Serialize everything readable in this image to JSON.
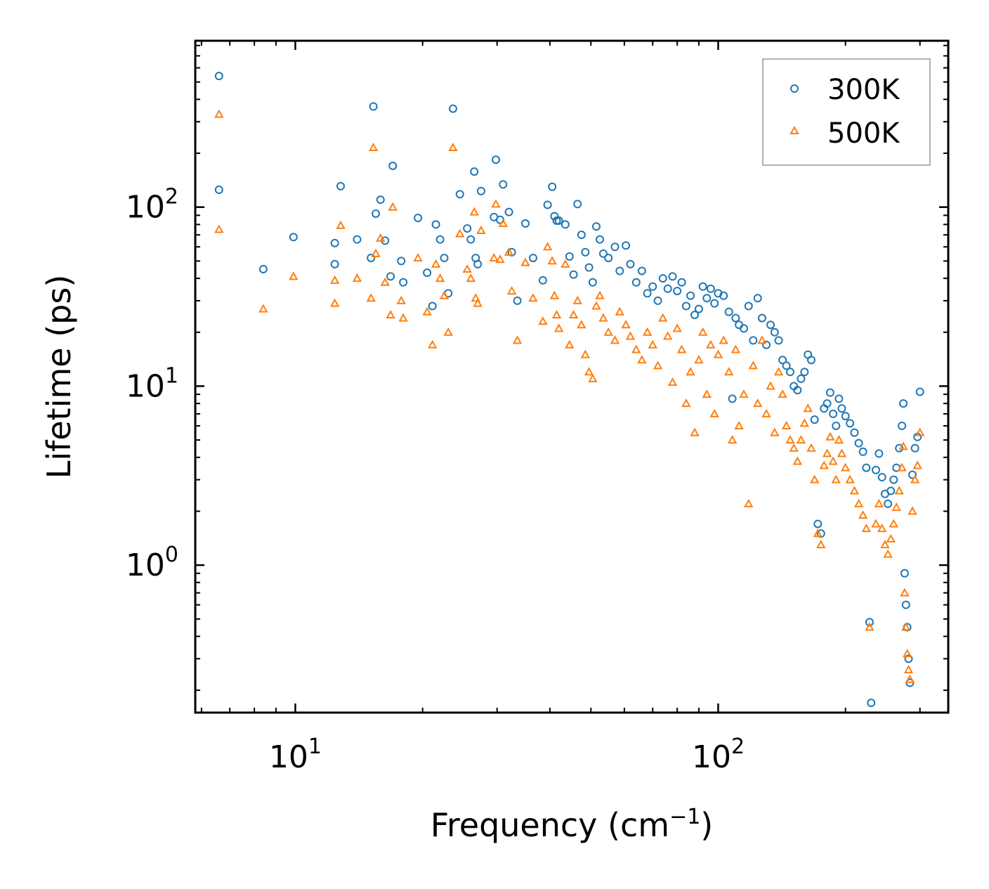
{
  "chart_data": {
    "type": "scatter",
    "title": "",
    "xlabel": "Frequency (cm",
    "xlabel_sup": "−1",
    "xlabel_close": ")",
    "ylabel": "Lifetime (ps)",
    "xscale": "log",
    "yscale": "log",
    "xlim": [
      5.8,
      350
    ],
    "ylim": [
      0.15,
      850
    ],
    "x_ticks": [
      {
        "value": 10,
        "base": "10",
        "exp": "1"
      },
      {
        "value": 100,
        "base": "10",
        "exp": "2"
      }
    ],
    "y_ticks": [
      {
        "value": 1,
        "base": "10",
        "exp": "0"
      },
      {
        "value": 10,
        "base": "10",
        "exp": "1"
      },
      {
        "value": 100,
        "base": "10",
        "exp": "2"
      }
    ],
    "legend_position": "top-right",
    "series": [
      {
        "name": "300K",
        "marker": "circle",
        "color": "#1f77b4",
        "points": [
          [
            6.6,
            540
          ],
          [
            6.6,
            125
          ],
          [
            8.4,
            45
          ],
          [
            9.9,
            68
          ],
          [
            12.4,
            63
          ],
          [
            12.4,
            48
          ],
          [
            12.8,
            131
          ],
          [
            14,
            66
          ],
          [
            15.1,
            52
          ],
          [
            15.3,
            365
          ],
          [
            15.5,
            92
          ],
          [
            15.9,
            110
          ],
          [
            16.3,
            65
          ],
          [
            16.8,
            41
          ],
          [
            17,
            170
          ],
          [
            17.8,
            50
          ],
          [
            18,
            38
          ],
          [
            19.5,
            87
          ],
          [
            20.5,
            43
          ],
          [
            21.1,
            28
          ],
          [
            21.5,
            80
          ],
          [
            22,
            66
          ],
          [
            22.5,
            52
          ],
          [
            23,
            33
          ],
          [
            23.6,
            355
          ],
          [
            24.5,
            118
          ],
          [
            25.5,
            76
          ],
          [
            26,
            66
          ],
          [
            26.5,
            158
          ],
          [
            26.7,
            52
          ],
          [
            27,
            48
          ],
          [
            27.5,
            123
          ],
          [
            29.5,
            88
          ],
          [
            29.8,
            184
          ],
          [
            30.5,
            85
          ],
          [
            31,
            134
          ],
          [
            32,
            94
          ],
          [
            32.5,
            56
          ],
          [
            33.5,
            30
          ],
          [
            35,
            81
          ],
          [
            36.5,
            52
          ],
          [
            38.5,
            39
          ],
          [
            39.5,
            103
          ],
          [
            40.5,
            130
          ],
          [
            41,
            89
          ],
          [
            41.5,
            84
          ],
          [
            42,
            84
          ],
          [
            43.5,
            80
          ],
          [
            44.5,
            53
          ],
          [
            45.5,
            42
          ],
          [
            46.5,
            104
          ],
          [
            47.5,
            70
          ],
          [
            48.5,
            56
          ],
          [
            49.5,
            46
          ],
          [
            50.5,
            38
          ],
          [
            51.5,
            78
          ],
          [
            52.5,
            66
          ],
          [
            53.5,
            55
          ],
          [
            55,
            52
          ],
          [
            57,
            60
          ],
          [
            58.5,
            44
          ],
          [
            60.5,
            61
          ],
          [
            62,
            48
          ],
          [
            64,
            38
          ],
          [
            66,
            44
          ],
          [
            68,
            33
          ],
          [
            70,
            36
          ],
          [
            72,
            30
          ],
          [
            74,
            40
          ],
          [
            76,
            35
          ],
          [
            78,
            41
          ],
          [
            80,
            34
          ],
          [
            82,
            38
          ],
          [
            84,
            28
          ],
          [
            86,
            32
          ],
          [
            88,
            25
          ],
          [
            90,
            27
          ],
          [
            92,
            36
          ],
          [
            94,
            31
          ],
          [
            96,
            35
          ],
          [
            98,
            29
          ],
          [
            100,
            33
          ],
          [
            103,
            32
          ],
          [
            106,
            26
          ],
          [
            108,
            8.5
          ],
          [
            110,
            24
          ],
          [
            112,
            22
          ],
          [
            115,
            21
          ],
          [
            118,
            28
          ],
          [
            121,
            18
          ],
          [
            124,
            31
          ],
          [
            127,
            24
          ],
          [
            130,
            17
          ],
          [
            133,
            22
          ],
          [
            136,
            20
          ],
          [
            139,
            18
          ],
          [
            142,
            14
          ],
          [
            145,
            13
          ],
          [
            148,
            12
          ],
          [
            151,
            10
          ],
          [
            154,
            9.5
          ],
          [
            157,
            11
          ],
          [
            160,
            12
          ],
          [
            163,
            15
          ],
          [
            166,
            14
          ],
          [
            169,
            6.5
          ],
          [
            172,
            1.7
          ],
          [
            175,
            1.5
          ],
          [
            178,
            7.5
          ],
          [
            181,
            8
          ],
          [
            184,
            9.2
          ],
          [
            187,
            7
          ],
          [
            190,
            6
          ],
          [
            193,
            8.5
          ],
          [
            196,
            7.5
          ],
          [
            200,
            6.8
          ],
          [
            205,
            6.2
          ],
          [
            210,
            5.5
          ],
          [
            215,
            4.8
          ],
          [
            220,
            4.3
          ],
          [
            224,
            3.5
          ],
          [
            228,
            0.48
          ],
          [
            230,
            0.17
          ],
          [
            236,
            3.4
          ],
          [
            240,
            4.2
          ],
          [
            244,
            3.1
          ],
          [
            248,
            2.5
          ],
          [
            252,
            2.2
          ],
          [
            256,
            2.6
          ],
          [
            260,
            3
          ],
          [
            264,
            3.5
          ],
          [
            268,
            4.5
          ],
          [
            272,
            6
          ],
          [
            274,
            8
          ],
          [
            276,
            0.9
          ],
          [
            278,
            0.6
          ],
          [
            280,
            0.45
          ],
          [
            282,
            0.3
          ],
          [
            284,
            0.22
          ],
          [
            288,
            3.2
          ],
          [
            292,
            4.5
          ],
          [
            296,
            5.2
          ],
          [
            300,
            9.3
          ]
        ]
      },
      {
        "name": "500K",
        "marker": "triangle",
        "color": "#ff7f0e",
        "points": [
          [
            6.6,
            330
          ],
          [
            6.6,
            75
          ],
          [
            8.4,
            27
          ],
          [
            9.9,
            41
          ],
          [
            12.4,
            39
          ],
          [
            12.4,
            29
          ],
          [
            12.8,
            79
          ],
          [
            14,
            40
          ],
          [
            15.1,
            31
          ],
          [
            15.3,
            215
          ],
          [
            15.5,
            55
          ],
          [
            15.9,
            67
          ],
          [
            16.3,
            38
          ],
          [
            16.8,
            25
          ],
          [
            17,
            100
          ],
          [
            17.8,
            30
          ],
          [
            18,
            24
          ],
          [
            19.5,
            52
          ],
          [
            20.5,
            26
          ],
          [
            21.1,
            17
          ],
          [
            21.5,
            48
          ],
          [
            22,
            40
          ],
          [
            22.5,
            32
          ],
          [
            23,
            20
          ],
          [
            23.6,
            215
          ],
          [
            24.5,
            71
          ],
          [
            25.5,
            45
          ],
          [
            26,
            40
          ],
          [
            26.5,
            94
          ],
          [
            26.7,
            31
          ],
          [
            27,
            29
          ],
          [
            27.5,
            74
          ],
          [
            29.5,
            52
          ],
          [
            29.8,
            104
          ],
          [
            30.5,
            51
          ],
          [
            31,
            81
          ],
          [
            32,
            56
          ],
          [
            32.5,
            34
          ],
          [
            33.5,
            18
          ],
          [
            35,
            49
          ],
          [
            36.5,
            31
          ],
          [
            38.5,
            23
          ],
          [
            39.5,
            60
          ],
          [
            40.5,
            50
          ],
          [
            41,
            32
          ],
          [
            41.5,
            25
          ],
          [
            42,
            21
          ],
          [
            43.5,
            48
          ],
          [
            44.5,
            17
          ],
          [
            45.5,
            25
          ],
          [
            46.5,
            30
          ],
          [
            47.5,
            22
          ],
          [
            48.5,
            15
          ],
          [
            49.5,
            12
          ],
          [
            50.5,
            11
          ],
          [
            51.5,
            28
          ],
          [
            52.5,
            32
          ],
          [
            53.5,
            24
          ],
          [
            55,
            20
          ],
          [
            57,
            18
          ],
          [
            58.5,
            26
          ],
          [
            60.5,
            22
          ],
          [
            62,
            19
          ],
          [
            64,
            16
          ],
          [
            66,
            14
          ],
          [
            68,
            20
          ],
          [
            70,
            17
          ],
          [
            72,
            13
          ],
          [
            74,
            24
          ],
          [
            76,
            19
          ],
          [
            78,
            10.5
          ],
          [
            80,
            21
          ],
          [
            82,
            16
          ],
          [
            84,
            8
          ],
          [
            86,
            12
          ],
          [
            88,
            5.5
          ],
          [
            90,
            14
          ],
          [
            92,
            20
          ],
          [
            94,
            9
          ],
          [
            96,
            17
          ],
          [
            98,
            7
          ],
          [
            100,
            15
          ],
          [
            103,
            18
          ],
          [
            106,
            12
          ],
          [
            108,
            5
          ],
          [
            110,
            16
          ],
          [
            112,
            6
          ],
          [
            115,
            9
          ],
          [
            118,
            2.2
          ],
          [
            121,
            13
          ],
          [
            124,
            8
          ],
          [
            127,
            18
          ],
          [
            130,
            7
          ],
          [
            133,
            10
          ],
          [
            136,
            5.5
          ],
          [
            139,
            12
          ],
          [
            142,
            9
          ],
          [
            145,
            6
          ],
          [
            148,
            5
          ],
          [
            151,
            4.5
          ],
          [
            154,
            3.8
          ],
          [
            157,
            5
          ],
          [
            160,
            6.2
          ],
          [
            163,
            7.5
          ],
          [
            166,
            4.5
          ],
          [
            169,
            3
          ],
          [
            172,
            1.5
          ],
          [
            175,
            1.3
          ],
          [
            178,
            3.6
          ],
          [
            181,
            4.2
          ],
          [
            184,
            5.2
          ],
          [
            187,
            3.8
          ],
          [
            190,
            3
          ],
          [
            193,
            5
          ],
          [
            196,
            4.2
          ],
          [
            200,
            3.5
          ],
          [
            205,
            3
          ],
          [
            210,
            2.6
          ],
          [
            215,
            2.2
          ],
          [
            220,
            1.9
          ],
          [
            224,
            1.6
          ],
          [
            228,
            0.45
          ],
          [
            236,
            1.7
          ],
          [
            240,
            2.2
          ],
          [
            244,
            1.6
          ],
          [
            248,
            1.3
          ],
          [
            252,
            1.15
          ],
          [
            256,
            1.4
          ],
          [
            260,
            1.7
          ],
          [
            264,
            2.1
          ],
          [
            268,
            2.6
          ],
          [
            272,
            3.5
          ],
          [
            274,
            4.6
          ],
          [
            276,
            0.7
          ],
          [
            278,
            0.45
          ],
          [
            280,
            0.32
          ],
          [
            282,
            0.26
          ],
          [
            284,
            0.23
          ],
          [
            288,
            2
          ],
          [
            292,
            3
          ],
          [
            296,
            3.6
          ],
          [
            300,
            5.5
          ]
        ]
      }
    ]
  }
}
